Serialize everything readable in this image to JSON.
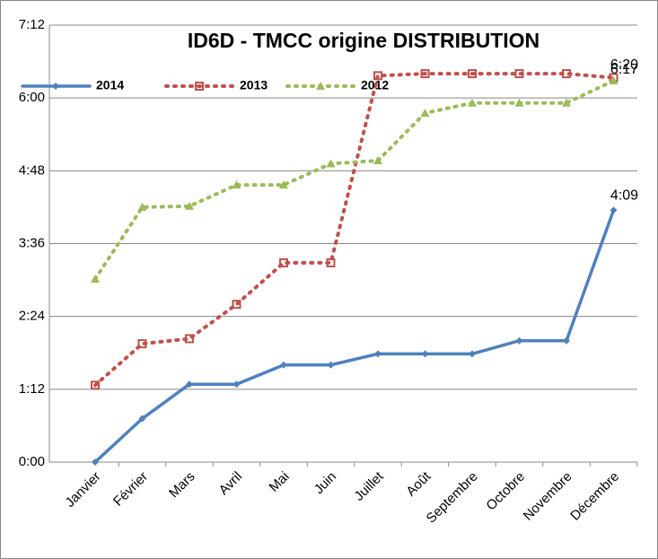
{
  "chart_data": {
    "type": "line",
    "title": "ID6D - TMCC origine DISTRIBUTION",
    "categories": [
      "Janvier",
      "Février",
      "Mars",
      "Avril",
      "Mai",
      "Juin",
      "Juillet",
      "Août",
      "Septembre",
      "Octobre",
      "Novembre",
      "Décembre"
    ],
    "series": [
      {
        "name": "2014",
        "color": "#4f81bd",
        "values": [
          0,
          43,
          77,
          77,
          96,
          96,
          107,
          107,
          107,
          120,
          120,
          249
        ],
        "value_labels": [
          null,
          null,
          null,
          null,
          null,
          null,
          null,
          null,
          null,
          null,
          null,
          "4:09"
        ]
      },
      {
        "name": "2013",
        "color": "#c0504d",
        "values": [
          76,
          117,
          122,
          156,
          197,
          197,
          382,
          384,
          384,
          384,
          384,
          380
        ],
        "value_labels": [
          null,
          null,
          null,
          null,
          null,
          null,
          null,
          null,
          null,
          null,
          null,
          "6:20"
        ]
      },
      {
        "name": "2012",
        "color": "#9bbb59",
        "values": [
          181,
          252,
          253,
          274,
          274,
          295,
          298,
          345,
          355,
          355,
          355,
          377
        ],
        "value_labels": [
          null,
          null,
          null,
          null,
          null,
          null,
          null,
          null,
          null,
          null,
          null,
          "6:17"
        ]
      }
    ],
    "ylim": [
      0,
      432
    ],
    "yticks": [
      {
        "value": 0,
        "label": "0:00"
      },
      {
        "value": 72,
        "label": "1:12"
      },
      {
        "value": 144,
        "label": "2:24"
      },
      {
        "value": 216,
        "label": "3:36"
      },
      {
        "value": 288,
        "label": "4:48"
      },
      {
        "value": 360,
        "label": "6:00"
      },
      {
        "value": 432,
        "label": "7:12"
      }
    ],
    "grid": true
  }
}
